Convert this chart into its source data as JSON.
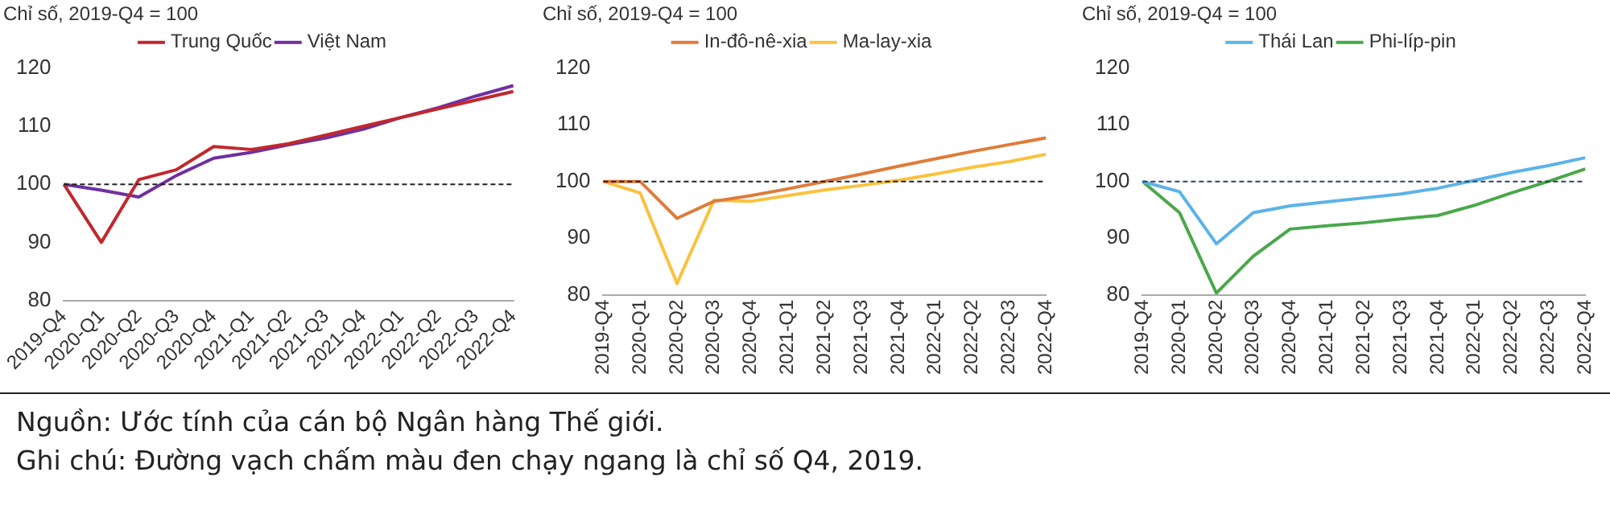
{
  "chart_data": [
    {
      "type": "line",
      "ylabel": "Chỉ số, 2019-Q4 = 100",
      "categories": [
        "2019-Q4",
        "2020-Q1",
        "2020-Q2",
        "2020-Q3",
        "2020-Q4",
        "2021-Q1",
        "2021-Q2",
        "2021-Q3",
        "2021-Q4",
        "2022-Q1",
        "2022-Q2",
        "2022-Q3",
        "2022-Q4"
      ],
      "ylim": [
        80,
        120
      ],
      "yticks": [
        80,
        90,
        100,
        110,
        120
      ],
      "grid": false,
      "legend": "top",
      "marker": "none",
      "line_style": "solid",
      "series": [
        {
          "name": "Trung Quốc",
          "color": "#c0282d",
          "values": [
            100,
            90,
            100.8,
            102.5,
            106.5,
            106,
            107,
            108.5,
            110,
            111.5,
            113,
            114.5,
            116
          ]
        },
        {
          "name": "Việt Nam",
          "color": "#7030a0",
          "values": [
            100,
            99,
            97.8,
            101.5,
            104.5,
            105.5,
            106.8,
            108,
            109.5,
            111.5,
            113.2,
            115.2,
            117
          ]
        }
      ],
      "ref_lines": [
        {
          "axis": "y",
          "value": 100,
          "label": null,
          "color": "#222222",
          "line_style": "dashed"
        }
      ]
    },
    {
      "type": "line",
      "ylabel": "Chỉ số, 2019-Q4 = 100",
      "categories": [
        "2019-Q4",
        "2020-Q1",
        "2020-Q2",
        "2020-Q3",
        "2020-Q4",
        "2021-Q1",
        "2021-Q2",
        "2021-Q3",
        "2021-Q4",
        "2022-Q1",
        "2022-Q2",
        "2022-Q3",
        "2022-Q4"
      ],
      "ylim": [
        80,
        120
      ],
      "yticks": [
        80,
        90,
        100,
        110,
        120
      ],
      "grid": false,
      "legend": "top",
      "marker": "none",
      "line_style": "solid",
      "series": [
        {
          "name": "In-đô-nê-xia",
          "color": "#e07b39",
          "values": [
            100,
            100,
            93.5,
            96.5,
            97.5,
            98.7,
            100,
            101.3,
            102.7,
            104,
            105.3,
            106.5,
            107.7
          ]
        },
        {
          "name": "Ma-lay-xia",
          "color": "#fbc13e",
          "values": [
            100,
            98,
            82,
            96.7,
            96.5,
            97.5,
            98.5,
            99.3,
            100.2,
            101.3,
            102.5,
            103.5,
            104.8
          ]
        }
      ],
      "ref_lines": [
        {
          "axis": "y",
          "value": 100,
          "label": null,
          "color": "#222222",
          "line_style": "dashed"
        }
      ]
    },
    {
      "type": "line",
      "ylabel": "Chỉ số, 2019-Q4 = 100",
      "categories": [
        "2019-Q4",
        "2020-Q1",
        "2020-Q2",
        "2020-Q3",
        "2020-Q4",
        "2021-Q1",
        "2021-Q2",
        "2021-Q3",
        "2021-Q4",
        "2022-Q1",
        "2022-Q2",
        "2022-Q3",
        "2022-Q4"
      ],
      "ylim": [
        80,
        120
      ],
      "yticks": [
        80,
        90,
        100,
        110,
        120
      ],
      "grid": false,
      "legend": "top",
      "marker": "none",
      "line_style": "solid",
      "series": [
        {
          "name": "Thái Lan",
          "color": "#5bb3e8",
          "values": [
            100,
            98.2,
            89,
            94.5,
            95.7,
            96.4,
            97.1,
            97.8,
            98.8,
            100.2,
            101.6,
            102.8,
            104.2
          ]
        },
        {
          "name": "Phi-líp-pin",
          "color": "#4aa84a",
          "values": [
            100,
            94.5,
            80.3,
            86.8,
            91.6,
            92.2,
            92.7,
            93.4,
            94,
            95.8,
            98,
            100,
            102.2
          ]
        }
      ],
      "ref_lines": [
        {
          "axis": "y",
          "value": 100,
          "label": null,
          "color": "#2f3f6a",
          "line_style": "dashed"
        }
      ],
      "annotations": [
        "Nguồn: Ước tính của cán bộ Ngân hàng Thế giới.",
        "Ghi chú: Đường vạch chấm màu đen chạy ngang là chỉ số Q4, 2019."
      ]
    }
  ]
}
